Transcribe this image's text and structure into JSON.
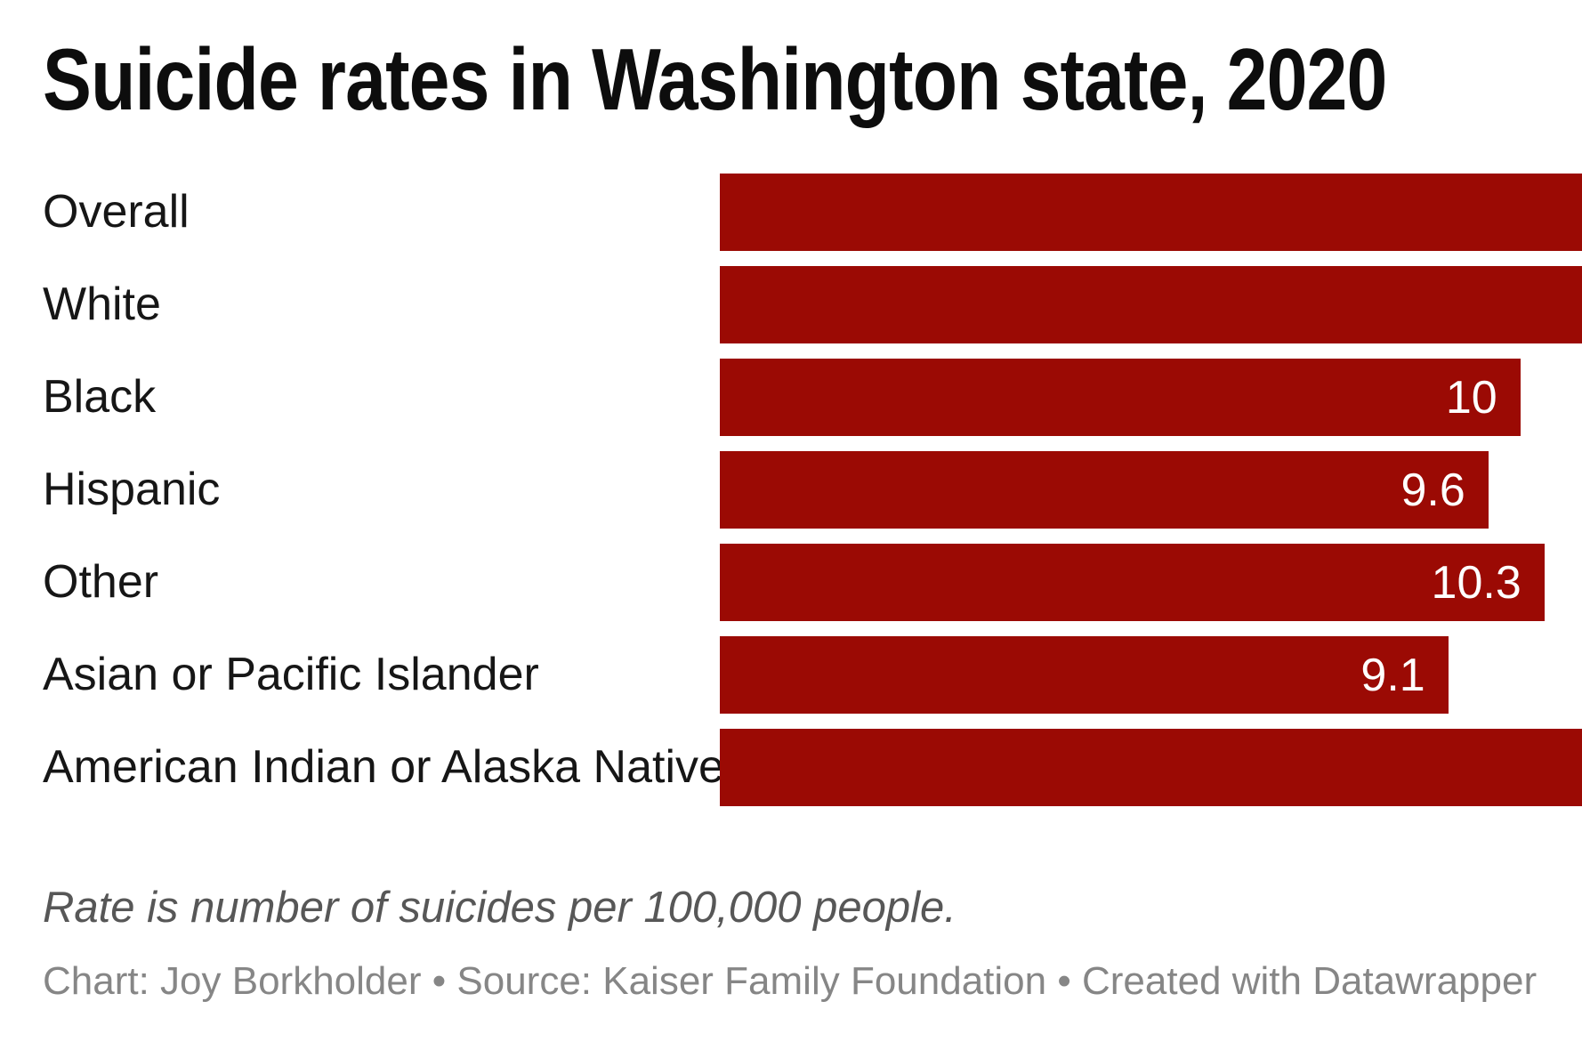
{
  "chart_data": {
    "type": "bar",
    "orientation": "horizontal",
    "title": "Suicide rates in Washington state, 2020",
    "categories": [
      "Overall",
      "White",
      "Black",
      "Hispanic",
      "Other",
      "Asian or Pacific Islander",
      "American Indian or Alaska Native"
    ],
    "values": [
      null,
      null,
      10,
      9.6,
      10.3,
      9.1,
      null
    ],
    "value_labels": [
      "",
      "",
      "10",
      "9.6",
      "10.3",
      "9.1",
      ""
    ],
    "bar_clipped_at_right_edge": [
      true,
      true,
      false,
      false,
      false,
      false,
      true
    ],
    "x_max_visible": 10.77,
    "bar_color": "#9b0a04",
    "grid": false,
    "legend": false,
    "note": "Rate is number of suicides per 100,000 people.",
    "attribution": "Chart: Joy Borkholder • Source: Kaiser Family Foundation • Created with Datawrapper"
  }
}
